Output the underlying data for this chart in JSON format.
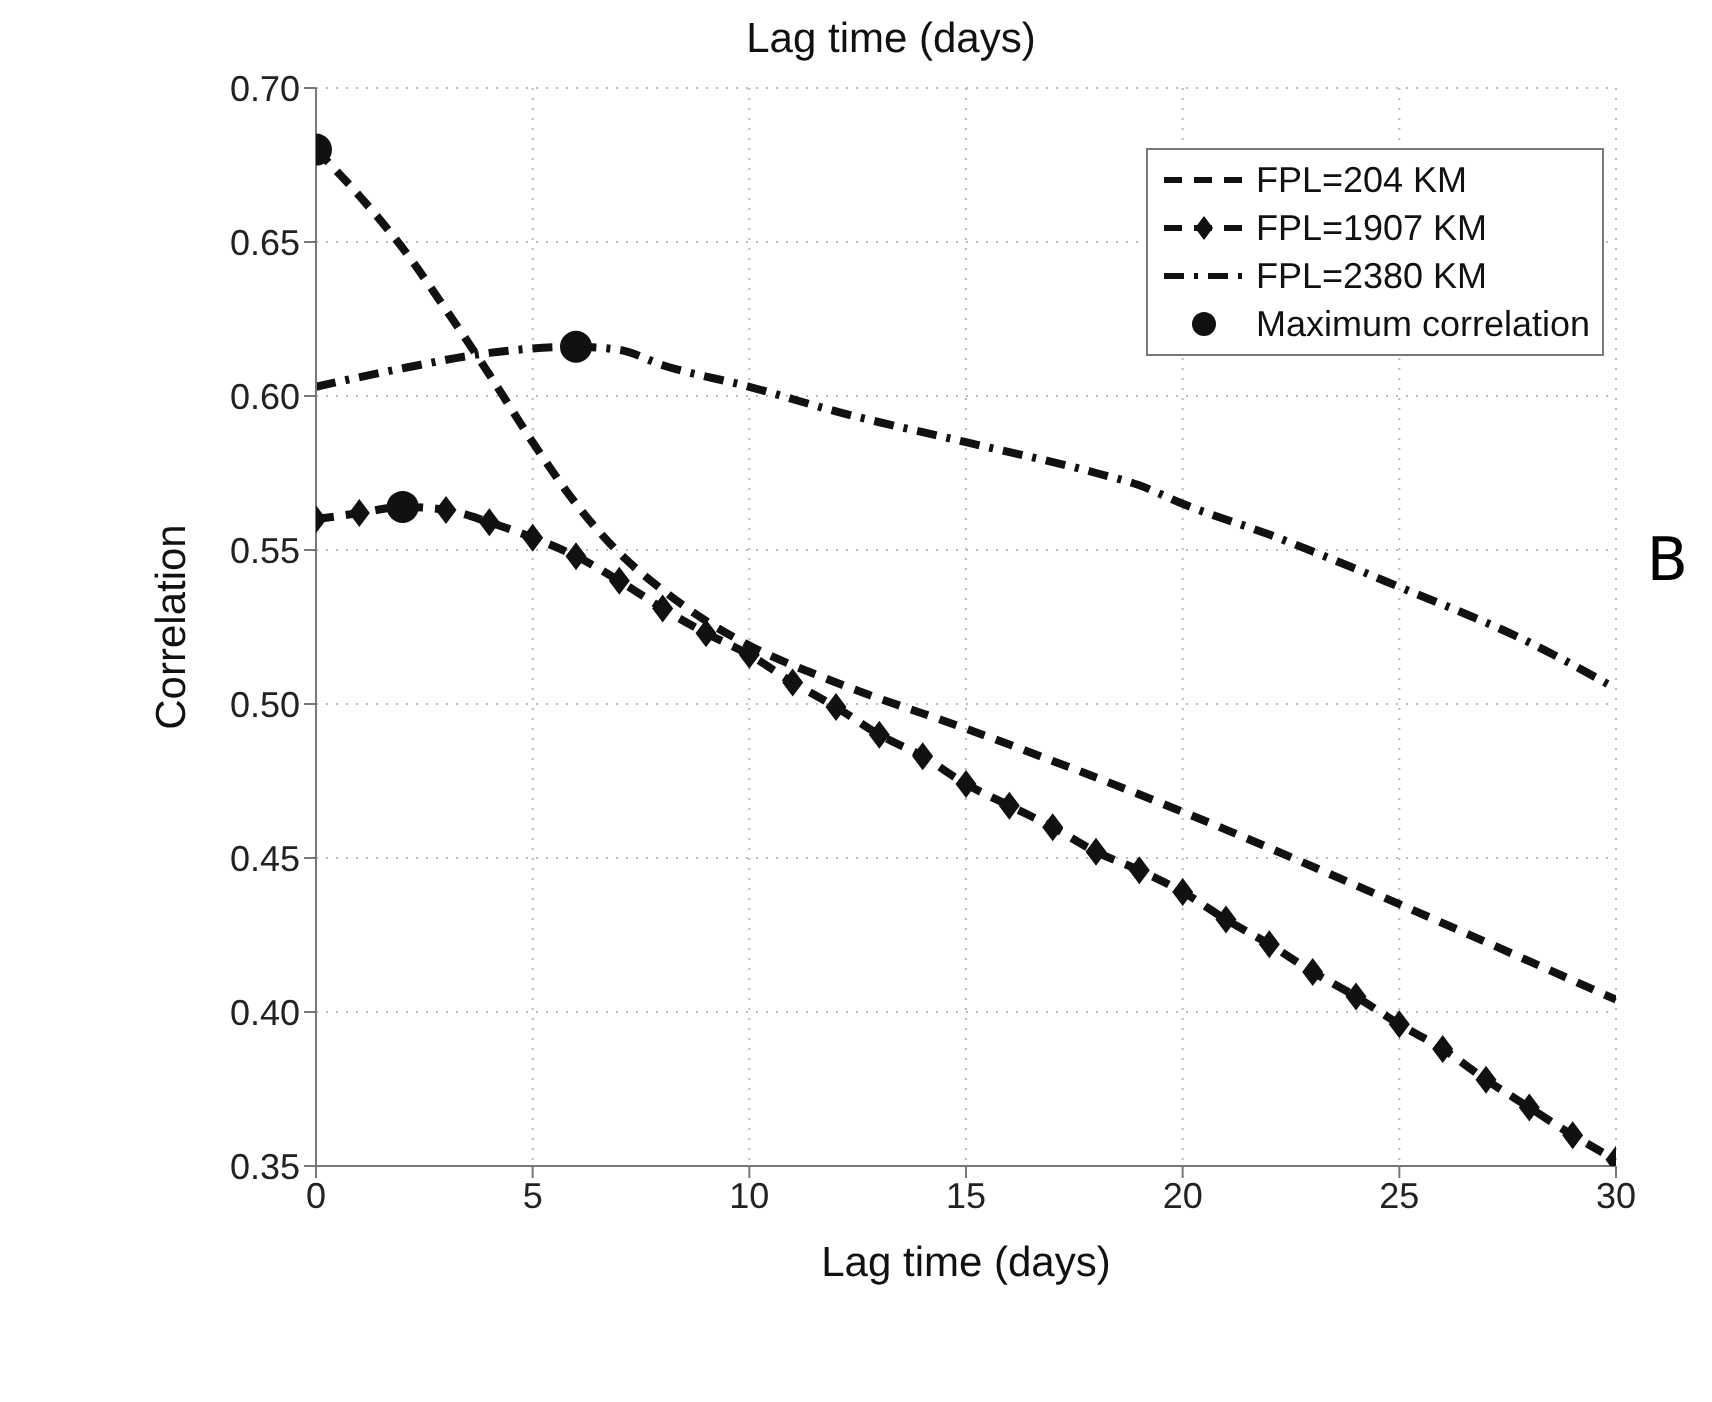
{
  "chart_data": {
    "type": "line",
    "xlabel": "Lag time (days)",
    "ylabel": "Correlation",
    "annotations": [
      "Lag time (days)",
      "B"
    ],
    "xlim": [
      0,
      30
    ],
    "ylim": [
      0.35,
      0.7
    ],
    "xticks": [
      0,
      5,
      10,
      15,
      20,
      25,
      30
    ],
    "yticks": [
      0.35,
      {
        "value": 0.4,
        "label": "0.40"
      },
      0.45,
      {
        "value": 0.5,
        "label": "0.50"
      },
      0.55,
      {
        "value": 0.6,
        "label": "0.60"
      },
      0.65,
      {
        "value": 0.7,
        "label": "0.70"
      }
    ],
    "grid": true,
    "legend": "top right",
    "series": [
      {
        "name": "FPL=204 KM",
        "color": "#111111",
        "line_style": "dashed",
        "marker": "none",
        "x": [
          0,
          1,
          2,
          3,
          4,
          5,
          6,
          7,
          8,
          9,
          10,
          12,
          15,
          20,
          25,
          30
        ],
        "values": [
          0.68,
          0.665,
          0.648,
          0.628,
          0.607,
          0.585,
          0.565,
          0.549,
          0.537,
          0.527,
          0.519,
          0.507,
          0.492,
          0.465,
          0.435,
          0.404
        ]
      },
      {
        "name": "FPL=1907 KM",
        "color": "#111111",
        "line_style": "dashed",
        "marker": "diamond",
        "x": [
          0,
          1,
          2,
          3,
          4,
          5,
          6,
          7,
          8,
          9,
          10,
          11,
          12,
          13,
          14,
          15,
          16,
          17,
          18,
          19,
          20,
          21,
          22,
          23,
          24,
          25,
          26,
          27,
          28,
          29,
          30
        ],
        "values": [
          0.56,
          0.562,
          0.564,
          0.563,
          0.559,
          0.554,
          0.548,
          0.54,
          0.531,
          0.523,
          0.516,
          0.507,
          0.499,
          0.49,
          0.483,
          0.474,
          0.467,
          0.46,
          0.452,
          0.446,
          0.439,
          0.43,
          0.422,
          0.413,
          0.405,
          0.396,
          0.388,
          0.378,
          0.369,
          0.36,
          0.352
        ]
      },
      {
        "name": "FPL=2380 KM",
        "color": "#111111",
        "line_style": "dashdot",
        "marker": "none",
        "x": [
          0,
          2,
          4,
          6,
          7,
          8,
          10,
          12,
          15,
          18,
          19,
          20,
          22,
          25,
          28,
          30
        ],
        "values": [
          0.603,
          0.609,
          0.614,
          0.616,
          0.615,
          0.61,
          0.603,
          0.595,
          0.585,
          0.575,
          0.571,
          0.565,
          0.555,
          0.538,
          0.52,
          0.505
        ]
      },
      {
        "name": "Maximum correlation",
        "type": "scatter",
        "color": "#111111",
        "marker": "circle",
        "x": [
          0,
          2,
          6
        ],
        "values": [
          0.68,
          0.564,
          0.616
        ]
      }
    ]
  }
}
